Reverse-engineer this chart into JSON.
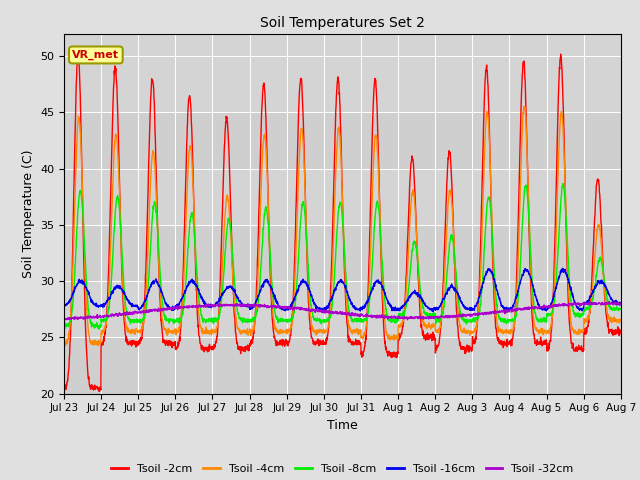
{
  "title": "Soil Temperatures Set 2",
  "xlabel": "Time",
  "ylabel": "Soil Temperature (C)",
  "ylim": [
    20,
    52
  ],
  "background_color": "#e0e0e0",
  "plot_bg_color": "#d4d4d4",
  "series_colors": [
    "#ff0000",
    "#ff8800",
    "#00ee00",
    "#0000ee",
    "#aa00cc"
  ],
  "series_labels": [
    "Tsoil -2cm",
    "Tsoil -4cm",
    "Tsoil -8cm",
    "Tsoil -16cm",
    "Tsoil -32cm"
  ],
  "series_lw": [
    1.0,
    1.0,
    1.0,
    1.0,
    1.0
  ],
  "xtick_labels": [
    "Jul 23",
    "Jul 24",
    "Jul 25",
    "Jul 26",
    "Jul 27",
    "Jul 28",
    "Jul 29",
    "Jul 30",
    "Jul 31",
    "Aug 1",
    "Aug 2",
    "Aug 3",
    "Aug 4",
    "Aug 5",
    "Aug 6",
    "Aug 7"
  ],
  "ytick_labels": [
    20,
    25,
    30,
    35,
    40,
    45,
    50
  ],
  "grid_color": "#ffffff",
  "annotation": "VR_met",
  "annotation_color": "#cc0000",
  "annotation_bg": "#ffff99",
  "annotation_edge": "#999900"
}
